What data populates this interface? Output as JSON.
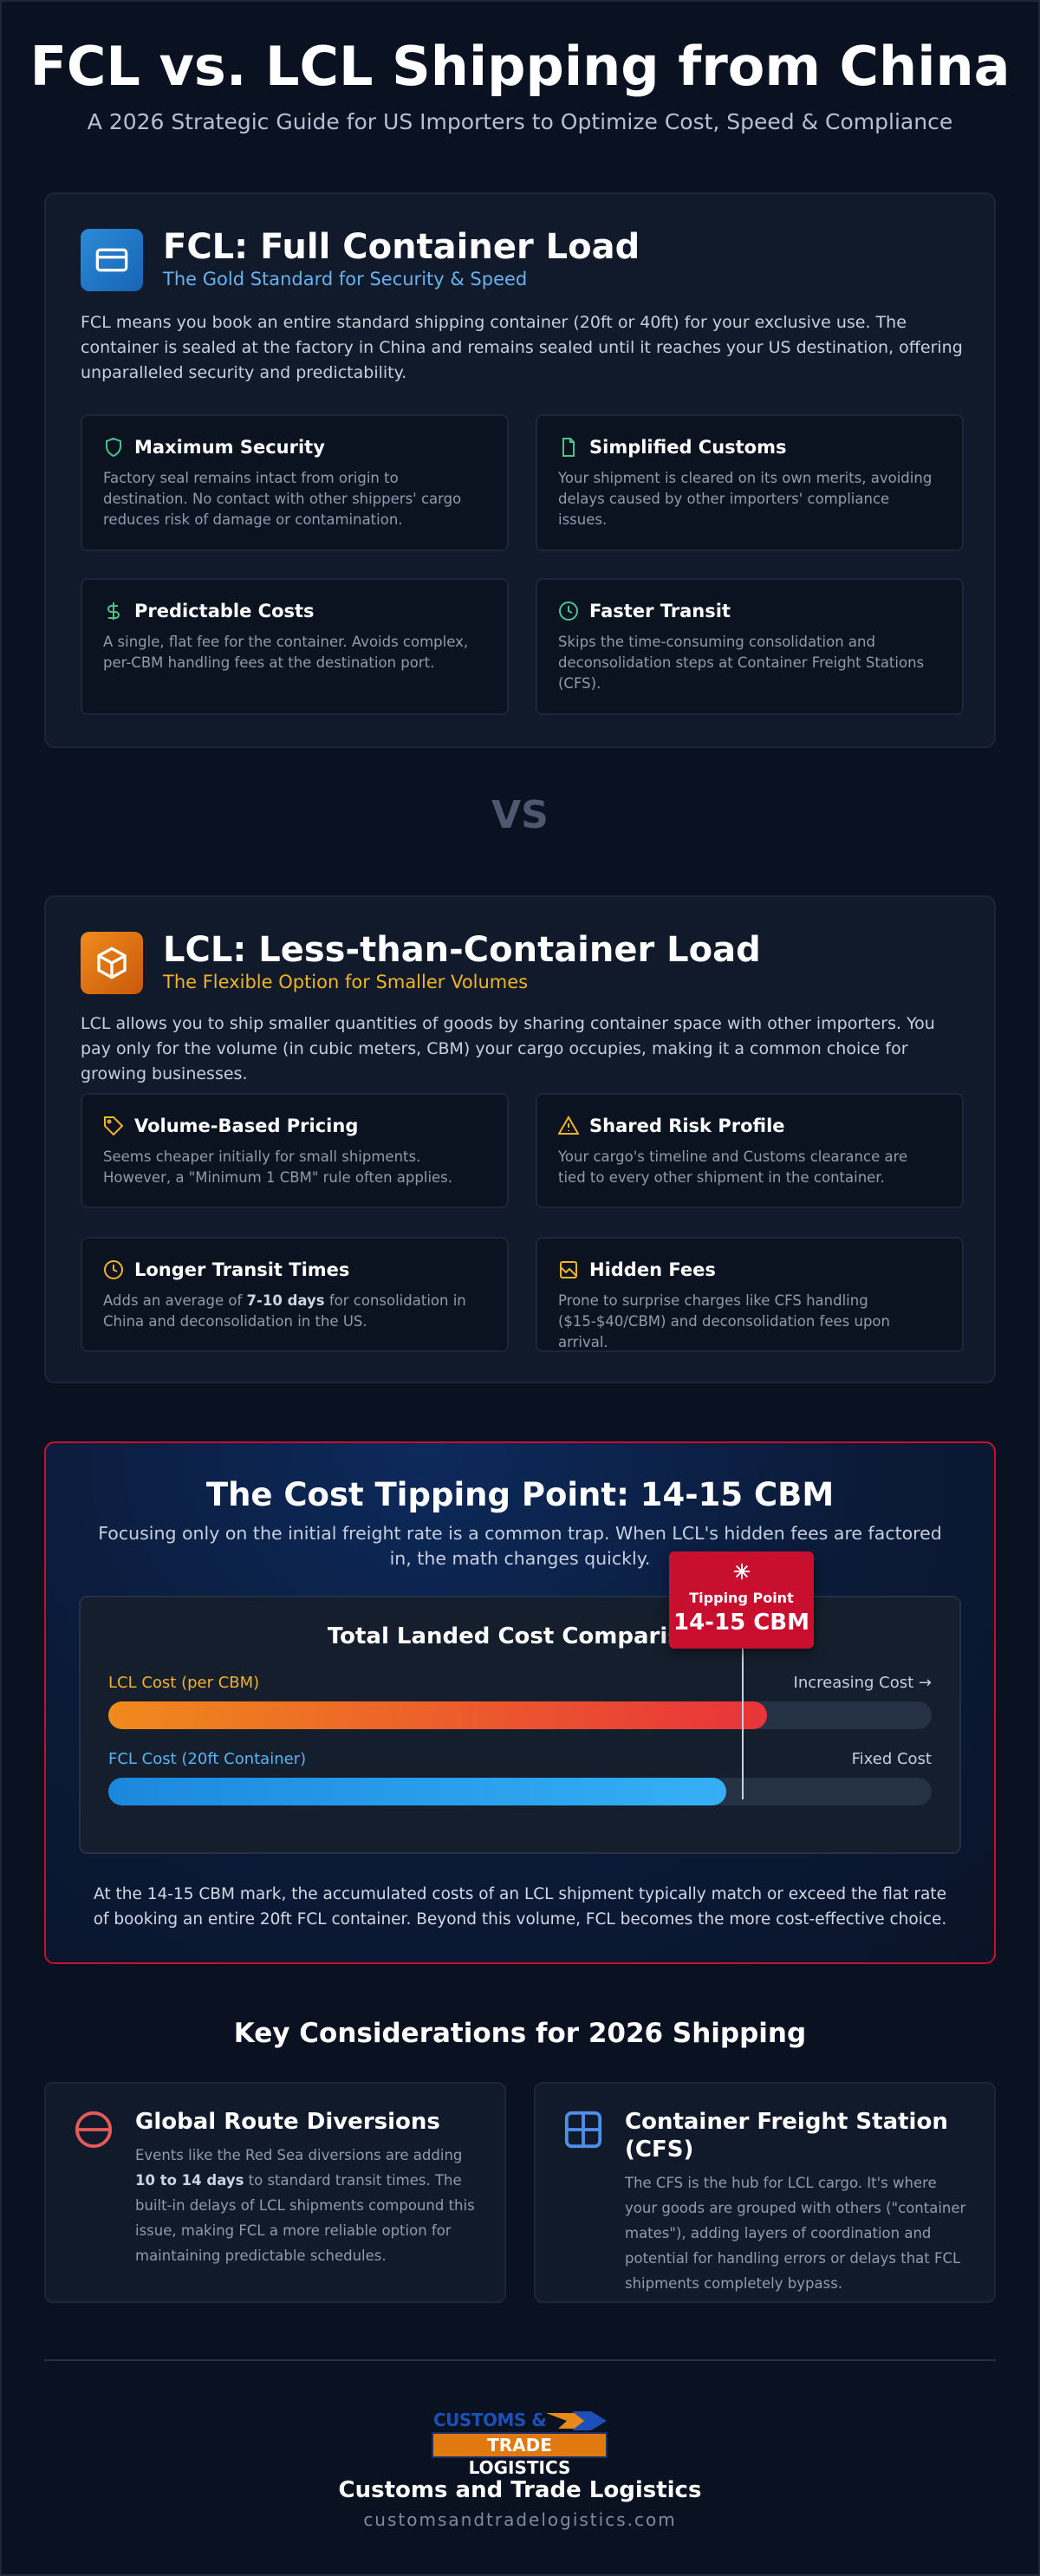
{
  "header": {
    "title": "FCL vs. LCL Shipping from China",
    "subtitle": "A 2026 Strategic Guide for US Importers to Optimize Cost, Speed & Compliance"
  },
  "fcl": {
    "title": "FCL: Full Container Load",
    "subtitle": "The Gold Standard for Security & Speed",
    "description": "FCL means you book an entire standard shipping container (20ft or 40ft) for your exclusive use. The container is sealed at the factory in China and remains sealed until it reaches your US destination, offering unparalleled security and predictability.",
    "features": [
      {
        "title": "Maximum Security",
        "text": [
          "Factory seal remains intact from origin to destination. No contact with other shippers' cargo reduces risk of damage or contamination."
        ]
      },
      {
        "title": "Simplified Customs",
        "text": [
          "Your shipment is cleared on its own merits, avoiding delays caused by other importers' compliance issues."
        ]
      },
      {
        "title": "Predictable Costs",
        "text": [
          "A single, flat fee for the container. Avoids complex, per-CBM handling fees at the destination port."
        ]
      },
      {
        "title": "Faster Transit",
        "text": [
          "Skips the time-consuming consolidation and deconsolidation steps at Container Freight Stations (CFS)."
        ]
      }
    ]
  },
  "vs": "VS",
  "lcl": {
    "title": "LCL: Less-than-Container Load",
    "subtitle": "The Flexible Option for Smaller Volumes",
    "description": "LCL allows you to ship smaller quantities of goods by sharing container space with other importers. You pay only for the volume (in cubic meters, CBM) your cargo occupies, making it a common choice for growing businesses.",
    "features": [
      {
        "title": "Volume-Based Pricing",
        "text": [
          "Seems cheaper initially for small shipments. However, a \"Minimum 1 CBM\" rule often applies."
        ]
      },
      {
        "title": "Shared Risk Profile",
        "text": [
          "Your cargo's timeline and Customs clearance are tied to every other shipment in the container."
        ]
      },
      {
        "title": "Longer Transit Times",
        "text": [
          "Adds an average of ",
          "7-10 days",
          " for consolidation in China and deconsolidation in the US."
        ]
      },
      {
        "title": "Hidden Fees",
        "text": [
          "Prone to surprise charges like CFS handling ($15-$40/CBM) and deconsolidation fees upon arrival."
        ]
      }
    ]
  },
  "tipping": {
    "title": "The Cost Tipping Point: 14-15 CBM",
    "description": "Focusing only on the initial freight rate is a common trap. When LCL's hidden fees are factored in, the math changes quickly.",
    "chart": {
      "title": "Total Landed Cost Comparison",
      "rows": [
        {
          "label": "LCL Cost (per CBM)",
          "note": "Increasing Cost →"
        },
        {
          "label": "FCL Cost (20ft Container)",
          "note": "Fixed Cost"
        }
      ],
      "marker": {
        "label": "Tipping Point",
        "value": "14-15 CBM"
      }
    },
    "conclusion": "At the 14-15 CBM mark, the accumulated costs of an LCL shipment typically match or exceed the flat rate of booking an entire 20ft FCL container. Beyond this volume, FCL becomes the more cost-effective choice."
  },
  "considerations": {
    "title": "Key Considerations for 2026 Shipping",
    "items": [
      {
        "title": "Global Route Diversions",
        "text": [
          "Events like the Red Sea diversions are adding ",
          "10 to 14 days",
          " to standard transit times. The built-in delays of LCL shipments compound this issue, making FCL a more reliable option for maintaining predictable schedules."
        ]
      },
      {
        "title": "Container Freight Station (CFS)",
        "text": [
          "The CFS is the hub for LCL cargo. It's where your goods are grouped with others (\"container mates\"), adding layers of coordination and potential for handling errors or delays that FCL shipments completely bypass."
        ]
      }
    ]
  },
  "footer": {
    "logo_top": "CUSTOMS &",
    "logo_bottom": "TRADE LOGISTICS",
    "company": "Customs and Trade Logistics",
    "url": "customsandtradelogistics.com"
  }
}
